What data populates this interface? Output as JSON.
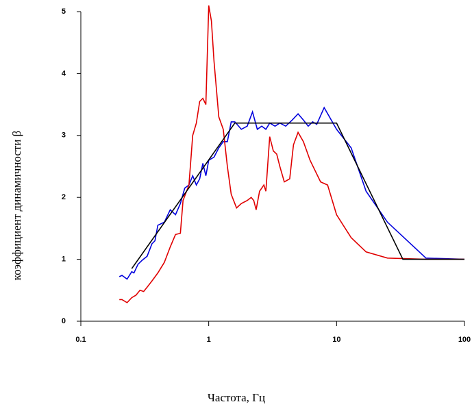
{
  "chart_data": {
    "type": "line",
    "x_label": "Частота, Гц",
    "y_label": "коэффициент динамичности β",
    "log_x": true,
    "xlim": [
      0.1,
      100
    ],
    "xticks": [
      0.1,
      1,
      10,
      100
    ],
    "ylim": [
      0,
      5
    ],
    "yticks": [
      0,
      1,
      2,
      3,
      4,
      5
    ],
    "series": [
      {
        "color": "#0000dd",
        "x": [
          0.2,
          0.21,
          0.23,
          0.25,
          0.26,
          0.28,
          0.3,
          0.33,
          0.36,
          0.38,
          0.4,
          0.45,
          0.5,
          0.55,
          0.6,
          0.65,
          0.7,
          0.75,
          0.8,
          0.85,
          0.9,
          0.95,
          1.0,
          1.1,
          1.2,
          1.3,
          1.4,
          1.5,
          1.6,
          1.8,
          2.0,
          2.2,
          2.4,
          2.6,
          2.8,
          3.0,
          3.3,
          3.6,
          4.0,
          4.5,
          5.0,
          5.5,
          6.0,
          6.5,
          7.0,
          8.0,
          10,
          13,
          17,
          25,
          50,
          100
        ],
        "values": [
          0.72,
          0.74,
          0.68,
          0.8,
          0.78,
          0.92,
          0.98,
          1.05,
          1.25,
          1.3,
          1.55,
          1.6,
          1.8,
          1.72,
          1.9,
          2.15,
          2.2,
          2.35,
          2.2,
          2.3,
          2.55,
          2.35,
          2.6,
          2.65,
          2.8,
          2.9,
          2.9,
          3.22,
          3.22,
          3.1,
          3.15,
          3.38,
          3.1,
          3.15,
          3.1,
          3.2,
          3.15,
          3.2,
          3.15,
          3.25,
          3.35,
          3.25,
          3.15,
          3.22,
          3.18,
          3.45,
          3.1,
          2.8,
          2.1,
          1.6,
          1.02,
          1.0
        ]
      },
      {
        "color": "#e00000",
        "x": [
          0.2,
          0.21,
          0.23,
          0.25,
          0.27,
          0.29,
          0.31,
          0.33,
          0.36,
          0.4,
          0.45,
          0.5,
          0.55,
          0.6,
          0.63,
          0.7,
          0.75,
          0.8,
          0.85,
          0.9,
          0.95,
          1.0,
          1.05,
          1.1,
          1.2,
          1.3,
          1.4,
          1.5,
          1.65,
          1.8,
          2.0,
          2.15,
          2.25,
          2.35,
          2.5,
          2.7,
          2.8,
          3.0,
          3.2,
          3.4,
          3.6,
          3.9,
          4.3,
          4.6,
          5.0,
          5.5,
          6.2,
          7.5,
          8.5,
          10,
          13,
          17,
          25,
          50,
          100
        ],
        "values": [
          0.35,
          0.35,
          0.3,
          0.38,
          0.42,
          0.5,
          0.48,
          0.55,
          0.65,
          0.78,
          0.95,
          1.2,
          1.4,
          1.42,
          1.95,
          2.2,
          3.0,
          3.2,
          3.55,
          3.6,
          3.5,
          5.1,
          4.85,
          4.2,
          3.3,
          3.1,
          2.5,
          2.05,
          1.83,
          1.9,
          1.95,
          2.0,
          1.95,
          1.8,
          2.1,
          2.2,
          2.1,
          2.98,
          2.75,
          2.7,
          2.5,
          2.25,
          2.3,
          2.85,
          3.05,
          2.9,
          2.6,
          2.25,
          2.2,
          1.72,
          1.35,
          1.12,
          1.02,
          1.0,
          1.0
        ]
      },
      {
        "color": "#000000",
        "x": [
          0.25,
          1.6,
          10,
          33,
          100
        ],
        "values": [
          0.85,
          3.2,
          3.2,
          1.0,
          1.0
        ]
      }
    ]
  }
}
